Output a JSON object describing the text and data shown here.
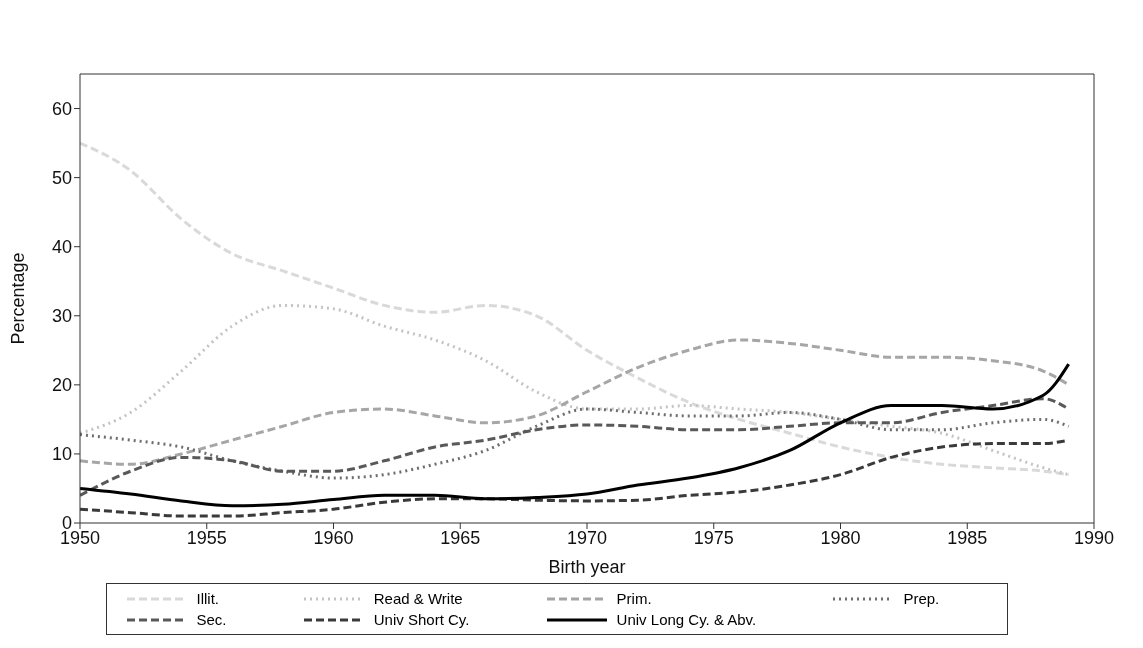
{
  "chart_data": {
    "type": "line",
    "xlabel": "Birth year",
    "ylabel": "Percentage",
    "x": [
      1950,
      1952,
      1954,
      1956,
      1958,
      1960,
      1962,
      1964,
      1966,
      1968,
      1970,
      1972,
      1974,
      1976,
      1978,
      1980,
      1982,
      1984,
      1986,
      1988,
      1989
    ],
    "series": [
      {
        "name": "Illit.",
        "color": "#d9d9d9",
        "line_style": "dashed",
        "values": [
          55,
          51,
          44,
          39,
          36.5,
          34,
          31.5,
          30.5,
          31.5,
          30,
          25,
          21,
          17.5,
          15,
          13,
          11,
          9.5,
          8.5,
          8,
          7.5,
          7
        ]
      },
      {
        "name": "Read & Write",
        "color": "#c4c4c4",
        "line_style": "dotted",
        "values": [
          13,
          16,
          22,
          28.5,
          31.5,
          31,
          28.5,
          26.5,
          23.5,
          19,
          16.5,
          16.5,
          17,
          16.5,
          16,
          15,
          14,
          13,
          10.5,
          8,
          7
        ]
      },
      {
        "name": "Prim.",
        "color": "#a6a6a6",
        "line_style": "dashed",
        "values": [
          9,
          8.5,
          10,
          12,
          14,
          16,
          16.5,
          15.5,
          14.5,
          15.5,
          19,
          22.5,
          25,
          26.5,
          26,
          25,
          24,
          24,
          23.5,
          22,
          20
        ]
      },
      {
        "name": "Prep.",
        "color": "#6e6e6e",
        "line_style": "dotted",
        "values": [
          12.8,
          12,
          11,
          9,
          7.5,
          6.5,
          7,
          8.5,
          10.5,
          14,
          16.5,
          16,
          15.5,
          15.5,
          16,
          15,
          13.5,
          13.5,
          14.5,
          15,
          14
        ]
      },
      {
        "name": "Sec.",
        "color": "#595959",
        "line_style": "dashed",
        "values": [
          4,
          7.5,
          9.5,
          9,
          7.5,
          7.5,
          9,
          11,
          12,
          13.5,
          14.2,
          14,
          13.5,
          13.5,
          14,
          14.5,
          14.5,
          16,
          17,
          18,
          16.5
        ]
      },
      {
        "name": "Univ Short Cy.",
        "color": "#3a3a3a",
        "line_style": "dashed",
        "values": [
          2,
          1.5,
          1,
          1,
          1.5,
          2,
          3,
          3.5,
          3.5,
          3.3,
          3.2,
          3.3,
          4,
          4.5,
          5.5,
          7,
          9.5,
          11,
          11.5,
          11.5,
          12
        ]
      },
      {
        "name": "Univ Long Cy. & Abv.",
        "color": "#000000",
        "line_style": "solid",
        "values": [
          5,
          4.2,
          3.2,
          2.5,
          2.7,
          3.4,
          4,
          4,
          3.5,
          3.7,
          4.2,
          5.5,
          6.5,
          8,
          10.5,
          14.5,
          17,
          17,
          16.5,
          18.5,
          23
        ]
      }
    ],
    "xlim": [
      1950,
      1990
    ],
    "xticks": [
      1950,
      1955,
      1960,
      1965,
      1970,
      1975,
      1980,
      1985,
      1990
    ],
    "ylim": [
      0,
      65
    ],
    "yticks": [
      0,
      10,
      20,
      30,
      40,
      50,
      60
    ],
    "legend": "bottom"
  }
}
